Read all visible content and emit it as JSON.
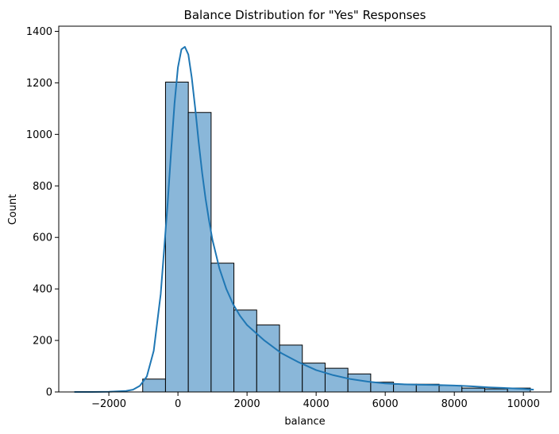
{
  "chart_data": {
    "type": "bar",
    "title": "Balance Distribution for \"Yes\" Responses",
    "xlabel": "balance",
    "ylabel": "Count",
    "xlim": [
      -3450,
      10800
    ],
    "ylim": [
      0,
      1420
    ],
    "xticks": [
      -2000,
      0,
      2000,
      4000,
      6000,
      8000,
      10000
    ],
    "xtick_labels": [
      "−2000",
      "0",
      "2000",
      "4000",
      "6000",
      "8000",
      "10000"
    ],
    "yticks": [
      0,
      200,
      400,
      600,
      800,
      1000,
      1200,
      1400
    ],
    "ytick_labels": [
      "0",
      "200",
      "400",
      "600",
      "800",
      "1000",
      "1200",
      "1400"
    ],
    "bins": [
      {
        "x0": -1020,
        "x1": -360,
        "count": 50
      },
      {
        "x0": -360,
        "x1": 300,
        "count": 1203
      },
      {
        "x0": 300,
        "x1": 960,
        "count": 1085
      },
      {
        "x0": 960,
        "x1": 1620,
        "count": 500
      },
      {
        "x0": 1620,
        "x1": 2280,
        "count": 318
      },
      {
        "x0": 2280,
        "x1": 2940,
        "count": 260
      },
      {
        "x0": 2940,
        "x1": 3600,
        "count": 182
      },
      {
        "x0": 3600,
        "x1": 4260,
        "count": 112
      },
      {
        "x0": 4260,
        "x1": 4920,
        "count": 92
      },
      {
        "x0": 4920,
        "x1": 5580,
        "count": 70
      },
      {
        "x0": 5580,
        "x1": 6240,
        "count": 38
      },
      {
        "x0": 6240,
        "x1": 6900,
        "count": 30
      },
      {
        "x0": 6900,
        "x1": 7560,
        "count": 30
      },
      {
        "x0": 7560,
        "x1": 8220,
        "count": 25
      },
      {
        "x0": 8220,
        "x1": 8880,
        "count": 15
      },
      {
        "x0": 8880,
        "x1": 9540,
        "count": 12
      },
      {
        "x0": 9540,
        "x1": 10200,
        "count": 15
      }
    ],
    "kde": {
      "x": [
        -3000,
        -2500,
        -2000,
        -1500,
        -1300,
        -1100,
        -900,
        -700,
        -500,
        -300,
        -200,
        -100,
        0,
        100,
        200,
        300,
        400,
        500,
        600,
        700,
        800,
        900,
        1000,
        1200,
        1400,
        1600,
        1800,
        2000,
        2500,
        3000,
        3500,
        4000,
        4500,
        5000,
        5500,
        6000,
        6500,
        7000,
        7500,
        8000,
        8500,
        9000,
        9500,
        10000,
        10300
      ],
      "y": [
        0,
        0,
        1,
        4,
        9,
        24,
        60,
        160,
        380,
        730,
        930,
        1120,
        1260,
        1330,
        1340,
        1310,
        1220,
        1100,
        970,
        850,
        750,
        665,
        590,
        480,
        400,
        340,
        295,
        260,
        200,
        150,
        115,
        85,
        65,
        50,
        40,
        33,
        30,
        28,
        27,
        25,
        22,
        18,
        15,
        12,
        9
      ]
    },
    "colors": {
      "bar_fill": "#8ab7d9",
      "bar_edge": "#000000",
      "kde_line": "#1f77b4"
    },
    "grid": false,
    "legend": "none"
  }
}
